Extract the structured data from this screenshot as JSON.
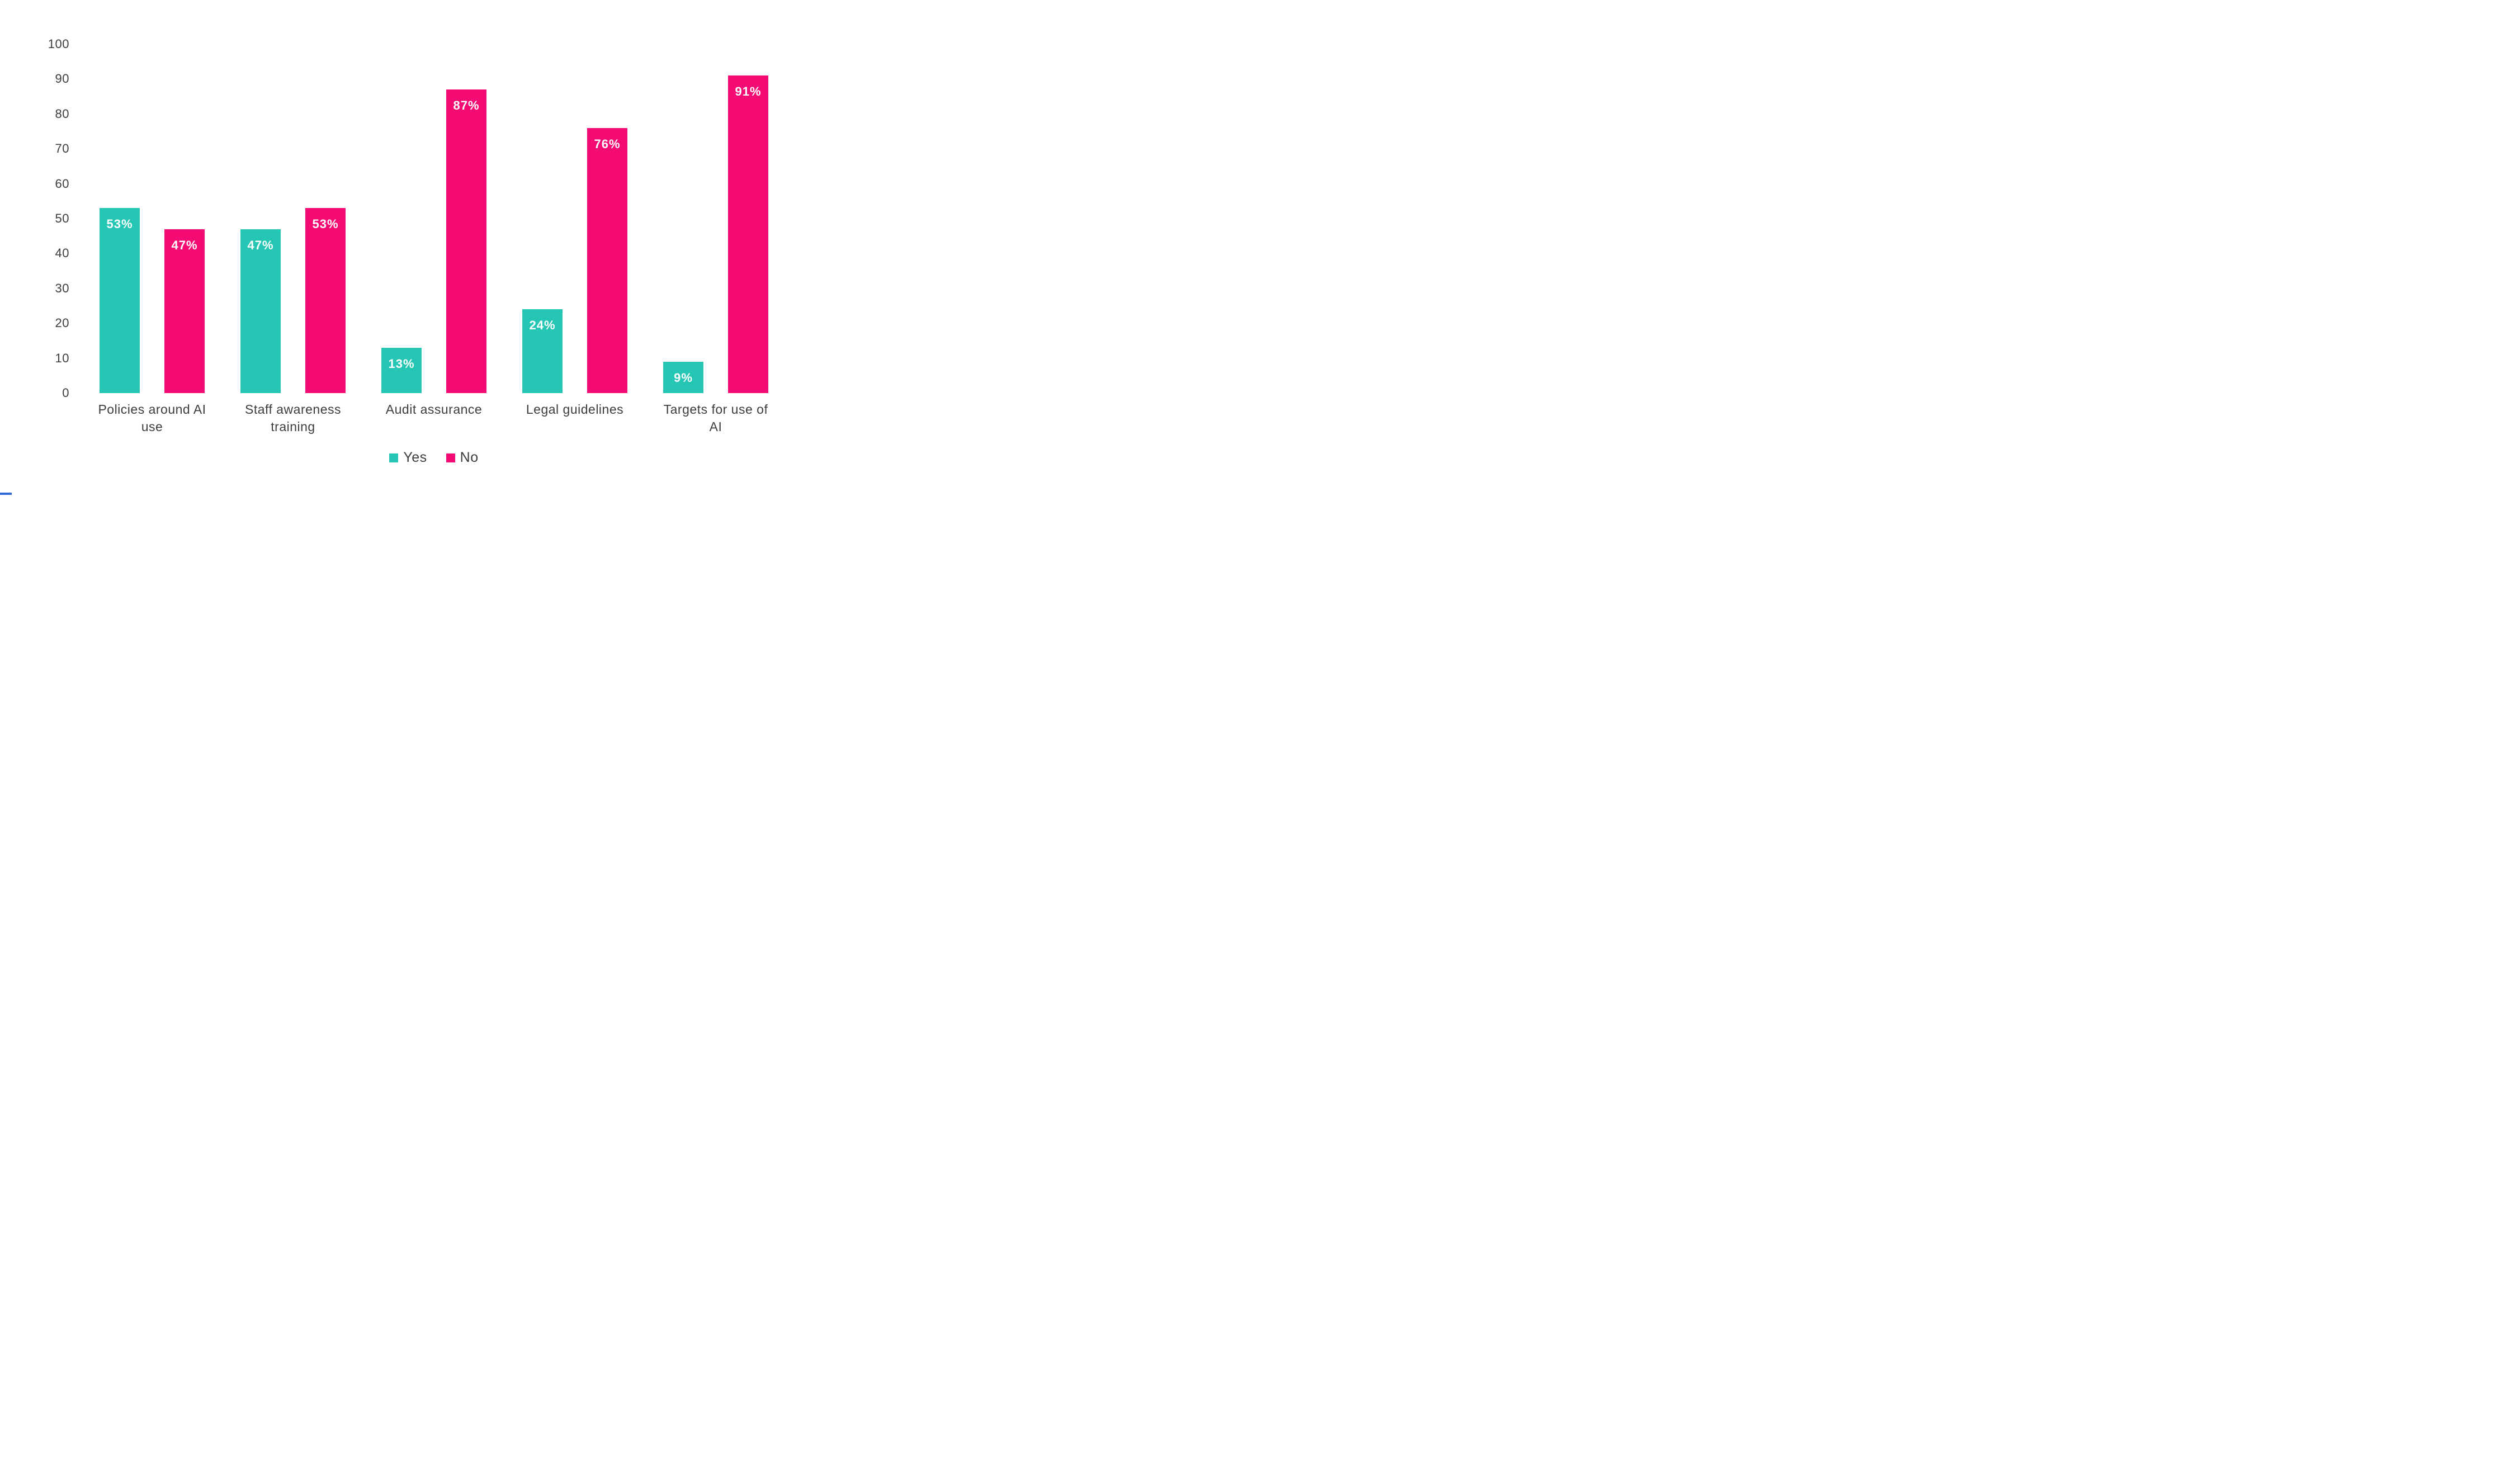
{
  "chart_data": {
    "type": "bar",
    "title": "",
    "xlabel": "",
    "ylabel": "",
    "categories": [
      "Policies around AI use",
      "Staff awareness training",
      "Audit assurance",
      "Legal guidelines",
      "Targets for use of AI"
    ],
    "series": [
      {
        "name": "Yes",
        "color": "#26C6B4",
        "values": [
          53,
          47,
          13,
          24,
          9
        ]
      },
      {
        "name": "No",
        "color": "#F40B74",
        "values": [
          47,
          53,
          87,
          76,
          91
        ]
      }
    ],
    "value_suffix": "%",
    "ylim": [
      0,
      100
    ],
    "yticks": [
      0,
      10,
      20,
      30,
      40,
      50,
      60,
      70,
      80,
      90,
      100
    ],
    "grid": false,
    "legend_position": "bottom"
  },
  "colors": {
    "yes_bar": "#26C6B4",
    "no_bar": "#F40B74",
    "bar_value_text": "#ffffff",
    "axis_text": "#3d3d3d",
    "background": "#ffffff",
    "corner_mark": "#2e6bd6"
  },
  "legend": {
    "items": [
      {
        "label": "Yes",
        "color": "#26C6B4"
      },
      {
        "label": "No",
        "color": "#F40B74"
      }
    ]
  }
}
